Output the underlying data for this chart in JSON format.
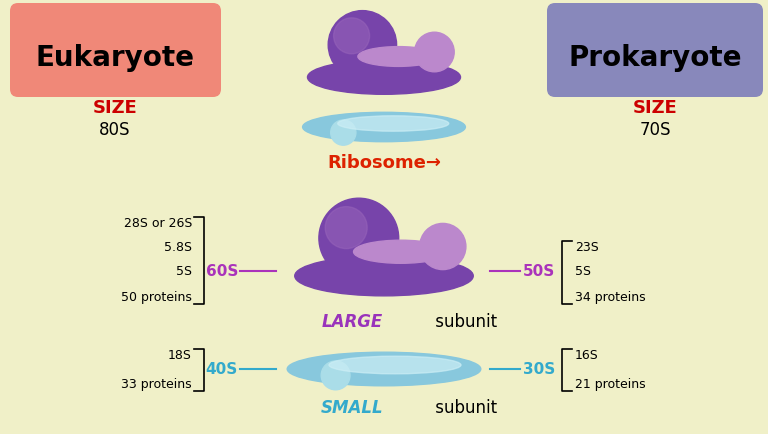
{
  "bg_color": "#f0f0c8",
  "eukaryote_label": "Eukaryote",
  "eukaryote_box_color": "#f08878",
  "prokaryote_label": "Prokaryote",
  "prokaryote_box_color": "#8888bb",
  "size_label": "SIZE",
  "size_color": "#cc0000",
  "euk_size": "80S",
  "prok_size": "70S",
  "ribosome_label": "Ribosome",
  "ribosome_arrow": "→",
  "ribosome_color": "#dd2200",
  "large_label": "LARGE",
  "large_color": "#9933bb",
  "small_label": "SMALL",
  "small_color": "#33aacc",
  "subunit_text": " subunit",
  "large_color1": "#7744aa",
  "large_color2": "#bb88cc",
  "large_color3": "#9966bb",
  "small_color1": "#88c8dd",
  "small_color2": "#aadde8",
  "small_color3": "#cceef5",
  "euk_large_s": "60S",
  "euk_large_color": "#aa33bb",
  "prok_large_s": "50S",
  "prok_large_color": "#aa33bb",
  "euk_small_s": "40S",
  "euk_small_color": "#33aacc",
  "prok_small_s": "30S",
  "prok_small_color": "#33aacc",
  "euk_large_items": [
    "28S or 26S",
    "5.8S",
    "5S",
    "50 proteins"
  ],
  "prok_large_items": [
    "23S",
    "5S",
    "34 proteins"
  ],
  "euk_small_items": [
    "18S",
    "33 proteins"
  ],
  "prok_small_items": [
    "16S",
    "21 proteins"
  ],
  "text_color": "#111111"
}
